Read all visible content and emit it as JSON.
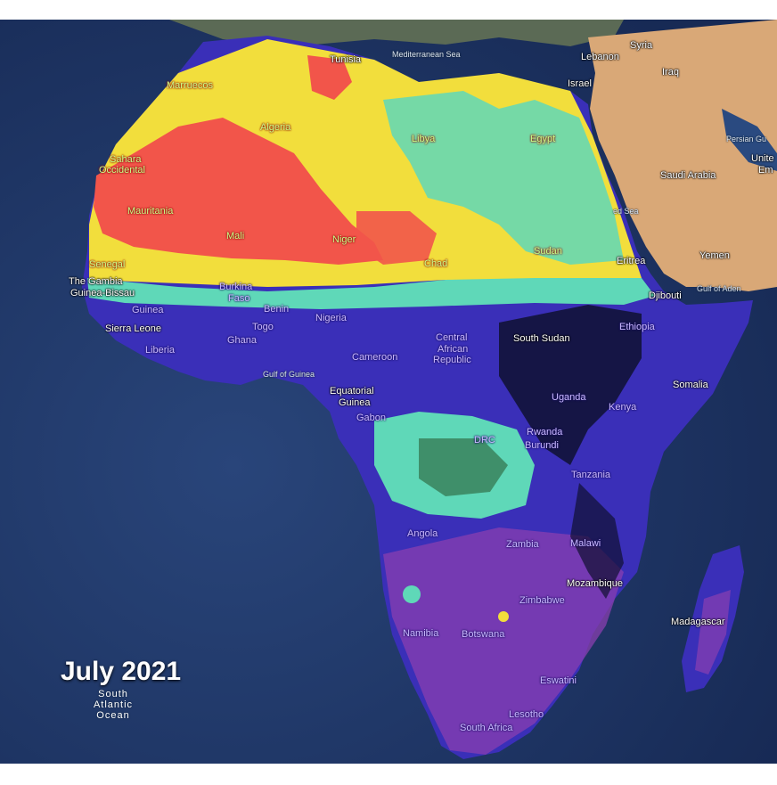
{
  "date_label": "July 2021",
  "colors": {
    "ocean": "#1f3566",
    "desert_land": "#d9a877",
    "hot": "#f2554a",
    "warm": "#f2de3c",
    "mild": "#5fd8b8",
    "cool": "#3a2fb8",
    "cold": "#0f1030",
    "mid": "#8a3fb0"
  },
  "labels": {
    "tunisia": "Tunisia",
    "mediterranean": "Mediterranean Sea",
    "syria": "Syria",
    "lebanon": "Lebanon",
    "iraq": "Iraq",
    "israel": "Israel",
    "marruecos": "Marruecos",
    "algeria": "Algeria",
    "libya": "Libya",
    "egypt": "Egypt",
    "persian_gulf": "Persian Gu",
    "united": "Unite",
    "emirates": "Em",
    "sahara1": "Sahara",
    "sahara2": "Occidental",
    "saudi": "Saudi Arabia",
    "red_sea": "ed Sea",
    "mauritania": "Mauritania",
    "mali": "Mali",
    "niger": "Niger",
    "sudan": "Sudan",
    "yemen": "Yemen",
    "senegal": "Senegal",
    "chad": "Chad",
    "eritrea": "Eritrea",
    "gambia": "The Gambia",
    "guinea_bissau": "Guinea-Bissau",
    "burkina1": "Burkina",
    "burkina2": "Faso",
    "djibouti": "Djibouti",
    "gulf_aden": "Gulf of Aden",
    "guinea": "Guinea",
    "benin": "Benin",
    "nigeria": "Nigeria",
    "ethiopia": "Ethiopia",
    "sierra": "Sierra Leone",
    "togo": "Togo",
    "car1": "Central",
    "car2": "African",
    "car3": "Republic",
    "south_sudan": "South Sudan",
    "ghana": "Ghana",
    "liberia": "Liberia",
    "cameroon": "Cameroon",
    "gulf_guinea": "Gulf of Guinea",
    "somalia": "Somalia",
    "uganda": "Uganda",
    "eq1": "Equatorial",
    "eq2": "Guinea",
    "kenya": "Kenya",
    "gabon": "Gabon",
    "rwanda": "Rwanda",
    "drc": "DRC",
    "burundi": "Burundi",
    "tanzania": "Tanzania",
    "angola": "Angola",
    "zambia": "Zambia",
    "malawi": "Malawi",
    "mozambique": "Mozambique",
    "zimbabwe": "Zimbabwe",
    "madagascar": "Madagascar",
    "namibia": "Namibia",
    "botswana": "Botswana",
    "ocean1": "South",
    "ocean2": "Atlantic",
    "ocean3": "Ocean",
    "eswatini": "Eswatini",
    "lesotho": "Lesotho",
    "south_africa": "South Africa"
  }
}
